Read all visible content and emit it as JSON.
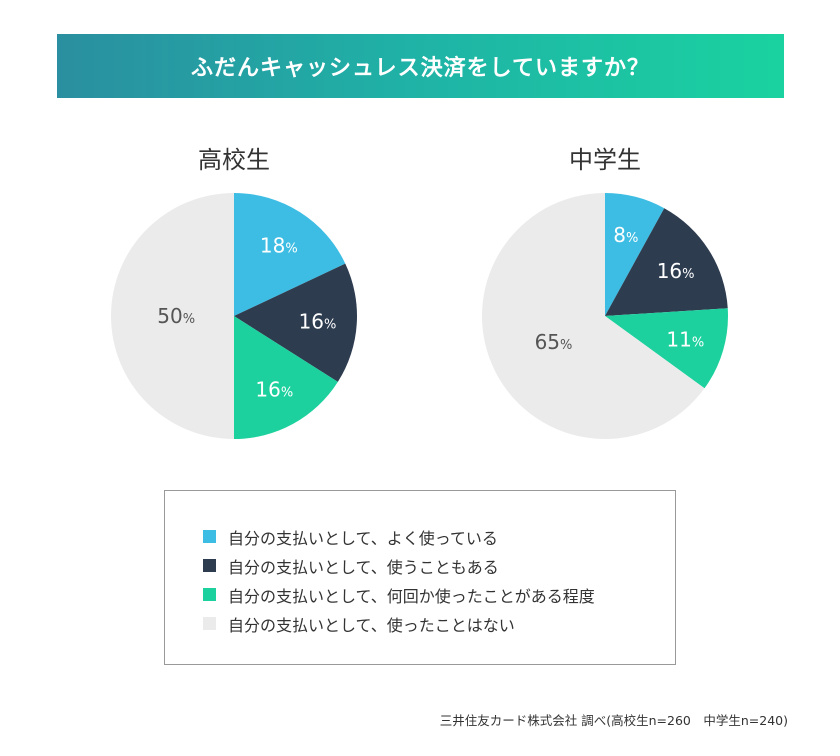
{
  "title": "ふだんキャッシュレス決済をしていますか？",
  "source": "三井住友カード株式会社 調べ(高校生n=260　中学生n=240)",
  "colors": [
    "#3dbde3",
    "#2e3c50",
    "#1dd19e",
    "#ebebeb"
  ],
  "label_colors": [
    "#ffffff",
    "#ffffff",
    "#ffffff",
    "#555555"
  ],
  "legend": [
    "自分の支払いとして、よく使っている",
    "自分の支払いとして、使うこともある",
    "自分の支払いとして、何回か使ったことがある程度",
    "自分の支払いとして、使ったことはない"
  ],
  "chart_data": [
    {
      "type": "pie",
      "title": "高校生",
      "categories": [
        "自分の支払いとして、よく使っている",
        "自分の支払いとして、使うこともある",
        "自分の支払いとして、何回か使ったことがある程度",
        "自分の支払いとして、使ったことはない"
      ],
      "values": [
        18,
        16,
        16,
        50
      ],
      "labels": [
        "18",
        "16",
        "16",
        "50"
      ],
      "unit": "%"
    },
    {
      "type": "pie",
      "title": "中学生",
      "categories": [
        "自分の支払いとして、よく使っている",
        "自分の支払いとして、使うこともある",
        "自分の支払いとして、何回か使ったことがある程度",
        "自分の支払いとして、使ったことはない"
      ],
      "values": [
        8,
        16,
        11,
        65
      ],
      "labels": [
        "8",
        "16",
        "11",
        "65"
      ],
      "unit": "%"
    }
  ]
}
